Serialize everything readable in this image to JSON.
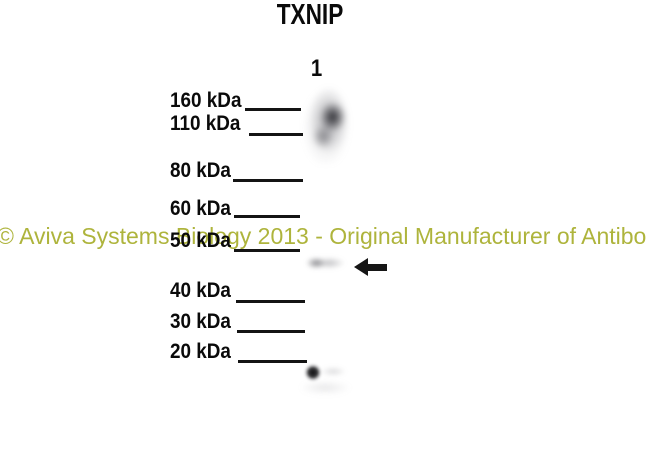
{
  "figure": {
    "title": "TXNIP",
    "lane": {
      "label": "1"
    },
    "ladder": {
      "markers": [
        {
          "label": "160 kDa",
          "kda": 160
        },
        {
          "label": "110 kDa",
          "kda": 110
        },
        {
          "label": "80 kDa",
          "kda": 80
        },
        {
          "label": "60 kDa",
          "kda": 60
        },
        {
          "label": "50 kDa",
          "kda": 50
        },
        {
          "label": "40 kDa",
          "kda": 40
        },
        {
          "label": "30 kDa",
          "kda": 30
        },
        {
          "label": "20 kDa",
          "kda": 20
        }
      ]
    },
    "bands": [
      {
        "name": "high-mw-smear",
        "approx_region": "110-160 kDa"
      },
      {
        "name": "target-band",
        "approx_region": "just below 50 kDa",
        "marked_by_arrow": true
      },
      {
        "name": "low-mw-spot",
        "approx_region": "below 20 kDa"
      }
    ],
    "watermark": {
      "text": "© Aviva Systems Biology 2013 - Original Manufacturer of Antibo",
      "color": "#aeb43c"
    },
    "colors": {
      "background": "#ffffff",
      "text": "#0a0a0a",
      "tick_line": "#141414",
      "arrow": "#161616"
    }
  }
}
